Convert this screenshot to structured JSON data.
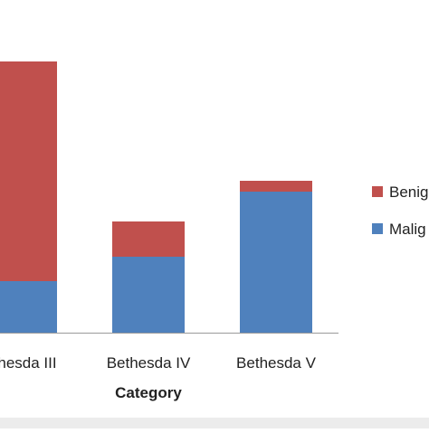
{
  "chart_data": {
    "type": "bar",
    "stacked": true,
    "title": "",
    "xlabel": "Category",
    "ylabel": "",
    "categories": [
      "Bethesda III",
      "Bethesda IV",
      "Bethesda V"
    ],
    "ylim": [
      0,
      100
    ],
    "grid": false,
    "legend_position": "right",
    "series": [
      {
        "name": "Malignant",
        "values": [
          19,
          28,
          52
        ],
        "color": "#4f81bd"
      },
      {
        "name": "Benign",
        "values": [
          81,
          13,
          4
        ],
        "color": "#c0504d"
      }
    ],
    "visible_category_text": [
      "hesda III",
      "Bethesda IV",
      "Bethesda V"
    ],
    "visible_legend_text": [
      "Benig",
      "Malig"
    ]
  }
}
